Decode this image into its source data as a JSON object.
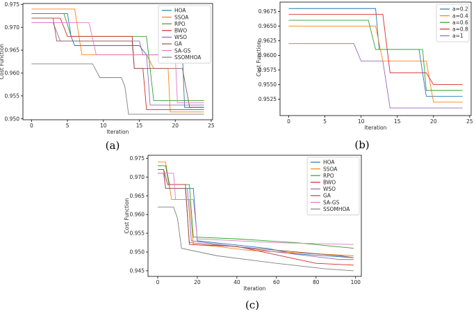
{
  "colors": {
    "blue": "#1f77b4",
    "orange": "#ff7f0e",
    "green": "#2ca02c",
    "red": "#d62728",
    "purple": "#9467bd",
    "brown": "#8c564b",
    "pink": "#e377c2",
    "gray": "#7f7f7f"
  },
  "chart_data": [
    {
      "id": "a",
      "caption": "(a)",
      "type": "line",
      "step": true,
      "xlabel": "Iteration",
      "ylabel": "Cost Function",
      "xlim": [
        -1.2,
        25.2
      ],
      "ylim": [
        0.9498,
        0.9752
      ],
      "xticks": [
        0,
        5,
        10,
        15,
        20,
        25
      ],
      "yticks": [
        0.95,
        0.955,
        0.96,
        0.965,
        0.97,
        0.975
      ],
      "ytick_format": 3,
      "legend": "top-right",
      "series": [
        {
          "name": "HOA",
          "color": "#1f77b4",
          "points": [
            [
              0,
              0.973
            ],
            [
              5,
              0.973
            ],
            [
              5.5,
              0.968
            ],
            [
              6,
              0.966
            ],
            [
              15,
              0.966
            ],
            [
              16,
              0.964
            ],
            [
              21,
              0.964
            ],
            [
              21.3,
              0.9525
            ],
            [
              24,
              0.9525
            ]
          ]
        },
        {
          "name": "SSOA",
          "color": "#ff7f0e",
          "points": [
            [
              0,
              0.974
            ],
            [
              6,
              0.974
            ],
            [
              7,
              0.964
            ],
            [
              16,
              0.964
            ],
            [
              17,
              0.961
            ],
            [
              19,
              0.961
            ],
            [
              19.3,
              0.9515
            ],
            [
              24,
              0.9515
            ]
          ]
        },
        {
          "name": "RPO",
          "color": "#2ca02c",
          "points": [
            [
              0,
              0.973
            ],
            [
              4.5,
              0.973
            ],
            [
              5.5,
              0.968
            ],
            [
              16,
              0.968
            ],
            [
              17,
              0.954
            ],
            [
              24,
              0.954
            ]
          ]
        },
        {
          "name": "BWO",
          "color": "#d62728",
          "points": [
            [
              0,
              0.972
            ],
            [
              4,
              0.972
            ],
            [
              5,
              0.968
            ],
            [
              14,
              0.968
            ],
            [
              14.3,
              0.961
            ],
            [
              15.5,
              0.961
            ],
            [
              16,
              0.952
            ],
            [
              24,
              0.952
            ]
          ]
        },
        {
          "name": "WSO",
          "color": "#9467bd",
          "points": [
            [
              0,
              0.971
            ],
            [
              3,
              0.971
            ],
            [
              4,
              0.967
            ],
            [
              15,
              0.967
            ],
            [
              15.5,
              0.964
            ],
            [
              16,
              0.964
            ],
            [
              16.5,
              0.953
            ],
            [
              24,
              0.953
            ]
          ]
        },
        {
          "name": "GA",
          "color": "#8c564b",
          "points": [
            [
              0,
              0.972
            ],
            [
              3,
              0.972
            ],
            [
              3.5,
              0.967
            ],
            [
              14,
              0.967
            ],
            [
              14.3,
              0.961
            ],
            [
              21,
              0.961
            ],
            [
              22,
              0.9525
            ],
            [
              24,
              0.9525
            ]
          ]
        },
        {
          "name": "SA-GS",
          "color": "#e377c2",
          "points": [
            [
              0,
              0.971
            ],
            [
              8,
              0.971
            ],
            [
              9,
              0.964
            ],
            [
              20,
              0.964
            ],
            [
              20.3,
              0.9535
            ],
            [
              24,
              0.9535
            ]
          ]
        },
        {
          "name": "SSOMHOA",
          "color": "#7f7f7f",
          "points": [
            [
              0,
              0.962
            ],
            [
              8.5,
              0.962
            ],
            [
              9.5,
              0.959
            ],
            [
              11.5,
              0.959
            ],
            [
              12.5,
              0.959
            ],
            [
              13,
              0.957
            ],
            [
              13.5,
              0.951
            ],
            [
              24,
              0.951
            ]
          ]
        }
      ]
    },
    {
      "id": "b",
      "caption": "(b)",
      "type": "line",
      "step": true,
      "xlabel": "Iteration",
      "ylabel": "Cost Function",
      "xlim": [
        -1.2,
        25.2
      ],
      "ylim": [
        0.9497,
        0.9691
      ],
      "xticks": [
        0,
        5,
        10,
        15,
        20,
        25
      ],
      "yticks": [
        0.9525,
        0.955,
        0.9575,
        0.96,
        0.9625,
        0.965,
        0.9675
      ],
      "ytick_format": 4,
      "legend": "top-right",
      "series": [
        {
          "name": "a=0.2",
          "color": "#1f77b4",
          "points": [
            [
              0,
              0.968
            ],
            [
              12,
              0.968
            ],
            [
              12.5,
              0.961
            ],
            [
              18,
              0.961
            ],
            [
              19,
              0.953
            ],
            [
              24,
              0.953
            ]
          ]
        },
        {
          "name": "a=0.4",
          "color": "#ff7f0e",
          "points": [
            [
              0,
              0.965
            ],
            [
              12,
              0.965
            ],
            [
              13,
              0.959
            ],
            [
              19,
              0.959
            ],
            [
              20,
              0.952
            ],
            [
              24,
              0.952
            ]
          ]
        },
        {
          "name": "a=0.6",
          "color": "#2ca02c",
          "points": [
            [
              0,
              0.966
            ],
            [
              11,
              0.966
            ],
            [
              12,
              0.961
            ],
            [
              18.5,
              0.961
            ],
            [
              19,
              0.954
            ],
            [
              24,
              0.954
            ]
          ]
        },
        {
          "name": "a=0.8",
          "color": "#d62728",
          "points": [
            [
              0,
              0.967
            ],
            [
              13,
              0.967
            ],
            [
              14,
              0.957
            ],
            [
              19,
              0.957
            ],
            [
              20,
              0.955
            ],
            [
              24,
              0.955
            ]
          ]
        },
        {
          "name": "a=1",
          "color": "#9467bd",
          "points": [
            [
              0,
              0.962
            ],
            [
              9,
              0.962
            ],
            [
              10,
              0.959
            ],
            [
              13,
              0.959
            ],
            [
              14,
              0.951
            ],
            [
              24,
              0.951
            ]
          ]
        }
      ]
    },
    {
      "id": "c",
      "caption": "(c)",
      "type": "line",
      "step": true,
      "xlabel": "Iteration",
      "ylabel": "Cost Function",
      "xlim": [
        -4.9,
        102.9
      ],
      "ylim": [
        0.9435,
        0.9758
      ],
      "xticks": [
        0,
        20,
        40,
        60,
        80,
        100
      ],
      "yticks": [
        0.945,
        0.95,
        0.955,
        0.96,
        0.965,
        0.97,
        0.975
      ],
      "ytick_format": 3,
      "legend": "top-right",
      "series": [
        {
          "name": "HOA",
          "color": "#1f77b4",
          "points": [
            [
              0,
              0.973
            ],
            [
              4,
              0.973
            ],
            [
              6,
              0.967
            ],
            [
              18,
              0.967
            ],
            [
              20,
              0.953
            ],
            [
              55,
              0.951
            ],
            [
              70,
              0.9495
            ],
            [
              99,
              0.9485
            ]
          ]
        },
        {
          "name": "SSOA",
          "color": "#ff7f0e",
          "points": [
            [
              0,
              0.974
            ],
            [
              4,
              0.974
            ],
            [
              7,
              0.964
            ],
            [
              16,
              0.964
            ],
            [
              18,
              0.952
            ],
            [
              30,
              0.9515
            ],
            [
              45,
              0.9505
            ],
            [
              99,
              0.949
            ]
          ]
        },
        {
          "name": "RPO",
          "color": "#2ca02c",
          "points": [
            [
              0,
              0.973
            ],
            [
              4,
              0.973
            ],
            [
              6,
              0.968
            ],
            [
              16,
              0.968
            ],
            [
              18,
              0.954
            ],
            [
              40,
              0.9535
            ],
            [
              70,
              0.9525
            ],
            [
              99,
              0.951
            ]
          ]
        },
        {
          "name": "BWO",
          "color": "#d62728",
          "points": [
            [
              0,
              0.972
            ],
            [
              3,
              0.972
            ],
            [
              5,
              0.968
            ],
            [
              14,
              0.968
            ],
            [
              16,
              0.952
            ],
            [
              40,
              0.9515
            ],
            [
              80,
              0.947
            ],
            [
              99,
              0.9465
            ]
          ]
        },
        {
          "name": "WSO",
          "color": "#9467bd",
          "points": [
            [
              0,
              0.971
            ],
            [
              3,
              0.971
            ],
            [
              4,
              0.967
            ],
            [
              15,
              0.967
            ],
            [
              17,
              0.953
            ],
            [
              60,
              0.95
            ],
            [
              92,
              0.948
            ],
            [
              99,
              0.948
            ]
          ]
        },
        {
          "name": "GA",
          "color": "#8c564b",
          "points": [
            [
              0,
              0.972
            ],
            [
              3,
              0.972
            ],
            [
              4,
              0.967
            ],
            [
              14,
              0.967
            ],
            [
              16,
              0.9525
            ],
            [
              60,
              0.9505
            ],
            [
              92,
              0.949
            ],
            [
              99,
              0.9485
            ]
          ]
        },
        {
          "name": "SA-GS",
          "color": "#e377c2",
          "points": [
            [
              0,
              0.971
            ],
            [
              8,
              0.971
            ],
            [
              9,
              0.964
            ],
            [
              18,
              0.964
            ],
            [
              20,
              0.9535
            ],
            [
              60,
              0.9525
            ],
            [
              99,
              0.952
            ]
          ]
        },
        {
          "name": "SSOMHOA",
          "color": "#7f7f7f",
          "points": [
            [
              0,
              0.962
            ],
            [
              8,
              0.962
            ],
            [
              10,
              0.959
            ],
            [
              12,
              0.951
            ],
            [
              30,
              0.949
            ],
            [
              60,
              0.947
            ],
            [
              85,
              0.9455
            ],
            [
              99,
              0.945
            ]
          ]
        }
      ]
    }
  ]
}
